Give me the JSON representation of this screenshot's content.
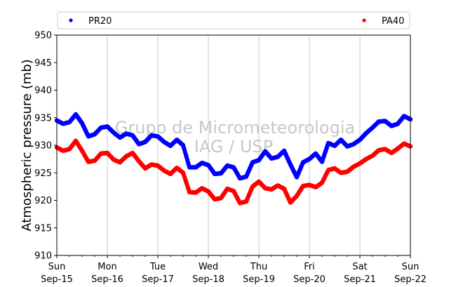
{
  "chart_data": {
    "type": "scatter",
    "title": "",
    "xlabel": "",
    "ylabel": "Atmospheric pressure (mb)",
    "ylim": [
      910,
      950
    ],
    "yticks": [
      910,
      915,
      920,
      925,
      930,
      935,
      940,
      945,
      950
    ],
    "xlim": [
      "2019-09-15",
      "2019-09-22"
    ],
    "xticks": [
      {
        "date": "2019-09-15",
        "day": "Sun",
        "label": "Sep-15"
      },
      {
        "date": "2019-09-16",
        "day": "Mon",
        "label": "Sep-16"
      },
      {
        "date": "2019-09-17",
        "day": "Tue",
        "label": "Sep-17"
      },
      {
        "date": "2019-09-18",
        "day": "Wed",
        "label": "Sep-18"
      },
      {
        "date": "2019-09-19",
        "day": "Thu",
        "label": "Sep-19"
      },
      {
        "date": "2019-09-20",
        "day": "Fri",
        "label": "Sep-20"
      },
      {
        "date": "2019-09-21",
        "day": "Sat",
        "label": "Sep-21"
      },
      {
        "date": "2019-09-22",
        "day": "Sun",
        "label": "Sep-22"
      }
    ],
    "grid": "vertical",
    "legend_placement": "top",
    "watermark": [
      "Grupo de Micrometeorologia",
      "IAG / USP"
    ],
    "series": [
      {
        "name": "PR20",
        "color": "#0000ff",
        "x": [
          "2019-09-15 00:00",
          "2019-09-15 03:00",
          "2019-09-15 06:00",
          "2019-09-15 09:00",
          "2019-09-15 12:00",
          "2019-09-15 15:00",
          "2019-09-15 18:00",
          "2019-09-15 21:00",
          "2019-09-16 00:00",
          "2019-09-16 03:00",
          "2019-09-16 06:00",
          "2019-09-16 09:00",
          "2019-09-16 12:00",
          "2019-09-16 15:00",
          "2019-09-16 18:00",
          "2019-09-16 21:00",
          "2019-09-17 00:00",
          "2019-09-17 03:00",
          "2019-09-17 06:00",
          "2019-09-17 09:00",
          "2019-09-17 12:00",
          "2019-09-17 15:00",
          "2019-09-17 18:00",
          "2019-09-17 21:00",
          "2019-09-18 00:00",
          "2019-09-18 03:00",
          "2019-09-18 06:00",
          "2019-09-18 09:00",
          "2019-09-18 12:00",
          "2019-09-18 15:00",
          "2019-09-18 18:00",
          "2019-09-18 21:00",
          "2019-09-19 00:00",
          "2019-09-19 03:00",
          "2019-09-19 06:00",
          "2019-09-19 09:00",
          "2019-09-19 12:00",
          "2019-09-19 15:00",
          "2019-09-19 18:00",
          "2019-09-19 21:00",
          "2019-09-20 00:00",
          "2019-09-20 03:00",
          "2019-09-20 06:00",
          "2019-09-20 09:00",
          "2019-09-20 12:00",
          "2019-09-20 15:00",
          "2019-09-20 18:00",
          "2019-09-20 21:00",
          "2019-09-21 00:00",
          "2019-09-21 03:00",
          "2019-09-21 06:00",
          "2019-09-21 09:00",
          "2019-09-21 12:00",
          "2019-09-21 15:00",
          "2019-09-21 18:00",
          "2019-09-21 21:00",
          "2019-09-22 00:00"
        ],
        "y": [
          934.5,
          933.9,
          934.2,
          935.6,
          934.0,
          931.6,
          932.0,
          933.2,
          933.4,
          932.3,
          931.4,
          932.1,
          931.8,
          930.2,
          930.6,
          931.8,
          931.6,
          930.6,
          929.9,
          931.0,
          930.0,
          926.0,
          926.0,
          926.8,
          926.4,
          924.8,
          924.9,
          926.3,
          926.0,
          924.0,
          924.3,
          926.9,
          927.3,
          928.9,
          927.6,
          927.9,
          929.0,
          926.5,
          924.2,
          926.9,
          927.5,
          928.5,
          927.0,
          930.4,
          929.9,
          931.0,
          929.8,
          930.2,
          931.0,
          932.2,
          933.2,
          934.3,
          934.4,
          933.5,
          933.9,
          935.3,
          934.7
        ]
      },
      {
        "name": "PA40",
        "color": "#ff0000",
        "x": [
          "2019-09-15 00:00",
          "2019-09-15 03:00",
          "2019-09-15 06:00",
          "2019-09-15 09:00",
          "2019-09-15 12:00",
          "2019-09-15 15:00",
          "2019-09-15 18:00",
          "2019-09-15 21:00",
          "2019-09-16 00:00",
          "2019-09-16 03:00",
          "2019-09-16 06:00",
          "2019-09-16 09:00",
          "2019-09-16 12:00",
          "2019-09-16 15:00",
          "2019-09-16 18:00",
          "2019-09-16 21:00",
          "2019-09-17 00:00",
          "2019-09-17 03:00",
          "2019-09-17 06:00",
          "2019-09-17 09:00",
          "2019-09-17 12:00",
          "2019-09-17 15:00",
          "2019-09-17 18:00",
          "2019-09-17 21:00",
          "2019-09-18 00:00",
          "2019-09-18 03:00",
          "2019-09-18 06:00",
          "2019-09-18 09:00",
          "2019-09-18 12:00",
          "2019-09-18 15:00",
          "2019-09-18 18:00",
          "2019-09-18 21:00",
          "2019-09-19 00:00",
          "2019-09-19 03:00",
          "2019-09-19 06:00",
          "2019-09-19 09:00",
          "2019-09-19 12:00",
          "2019-09-19 15:00",
          "2019-09-19 18:00",
          "2019-09-19 21:00",
          "2019-09-20 00:00",
          "2019-09-20 03:00",
          "2019-09-20 06:00",
          "2019-09-20 09:00",
          "2019-09-20 12:00",
          "2019-09-20 15:00",
          "2019-09-20 18:00",
          "2019-09-20 21:00",
          "2019-09-21 00:00",
          "2019-09-21 03:00",
          "2019-09-21 06:00",
          "2019-09-21 09:00",
          "2019-09-21 12:00",
          "2019-09-21 15:00",
          "2019-09-21 18:00",
          "2019-09-21 21:00",
          "2019-09-22 00:00"
        ],
        "y": [
          929.6,
          929.0,
          929.3,
          930.8,
          929.0,
          927.0,
          927.2,
          928.5,
          928.6,
          927.4,
          926.9,
          928.0,
          928.6,
          927.1,
          925.8,
          926.5,
          926.3,
          925.4,
          924.8,
          925.9,
          925.0,
          921.5,
          921.4,
          922.2,
          921.6,
          920.2,
          920.4,
          922.1,
          921.7,
          919.5,
          919.8,
          922.5,
          923.4,
          922.2,
          922.0,
          922.7,
          922.1,
          919.6,
          920.8,
          922.6,
          922.8,
          922.4,
          923.2,
          925.5,
          925.8,
          925.0,
          925.2,
          926.1,
          926.7,
          927.5,
          928.1,
          929.1,
          929.3,
          928.6,
          929.4,
          930.3,
          929.8
        ]
      }
    ]
  }
}
